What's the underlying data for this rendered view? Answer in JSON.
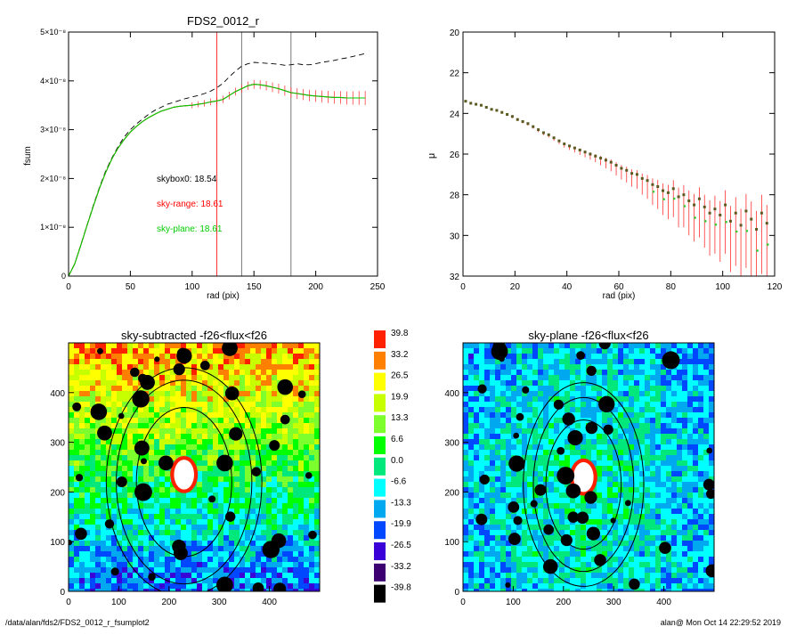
{
  "footer": {
    "left": "/data/alan/fds2/FDS2_0012_r_fsumplot2",
    "right": "alan@  Mon Oct 14 22:29:52 2019"
  },
  "chart_data": [
    {
      "type": "line",
      "title": "FDS2_0012_r",
      "xlabel": "rad (pix)",
      "ylabel": "fsum",
      "xlim": [
        0,
        250
      ],
      "ylim": [
        0,
        5e-08
      ],
      "xticks": [
        "0",
        "50",
        "100",
        "150",
        "200",
        "250"
      ],
      "yticks": [
        "0",
        "1×10⁻⁸",
        "2×10⁻⁸",
        "3×10⁻⁸",
        "4×10⁻⁸",
        "5×10⁻⁸"
      ],
      "yticks_values": [
        0,
        1e-08,
        2e-08,
        3e-08,
        4e-08,
        5e-08
      ],
      "vlines": [
        120,
        140,
        180
      ],
      "annotations": [
        "skybox0: 18.54",
        "sky-range: 18.61",
        "sky-plane: 18.61"
      ],
      "annotation_colors": [
        "#000000",
        "#ff0000",
        "#00cc00"
      ],
      "x": [
        0,
        5,
        10,
        15,
        20,
        25,
        30,
        35,
        40,
        45,
        50,
        55,
        60,
        65,
        70,
        75,
        80,
        85,
        90,
        95,
        100,
        105,
        110,
        115,
        120,
        125,
        130,
        135,
        140,
        145,
        150,
        155,
        160,
        165,
        170,
        175,
        180,
        185,
        190,
        195,
        200,
        205,
        210,
        215,
        220,
        225,
        230,
        235,
        240
      ],
      "series": [
        {
          "color": "#000000",
          "style": "dashed",
          "values": [
            0,
            2.5e-09,
            6.5e-09,
            1.05e-08,
            1.45e-08,
            1.82e-08,
            2.15e-08,
            2.42e-08,
            2.65e-08,
            2.85e-08,
            3e-08,
            3.12e-08,
            3.22e-08,
            3.32e-08,
            3.4e-08,
            3.46e-08,
            3.52e-08,
            3.56e-08,
            3.6e-08,
            3.64e-08,
            3.67e-08,
            3.7e-08,
            3.74e-08,
            3.79e-08,
            3.86e-08,
            3.95e-08,
            4.08e-08,
            4.2e-08,
            4.3e-08,
            4.35e-08,
            4.38e-08,
            4.37e-08,
            4.36e-08,
            4.35e-08,
            4.34e-08,
            4.32e-08,
            4.33e-08,
            4.35e-08,
            4.33e-08,
            4.33e-08,
            4.35e-08,
            4.38e-08,
            4.4e-08,
            4.42e-08,
            4.45e-08,
            4.47e-08,
            4.5e-08,
            4.53e-08,
            4.56e-08
          ]
        },
        {
          "color": "#ff0000",
          "style": "solid",
          "values": [
            0,
            2.5e-09,
            6.4e-09,
            1.04e-08,
            1.43e-08,
            1.8e-08,
            2.12e-08,
            2.4e-08,
            2.62e-08,
            2.8e-08,
            2.95e-08,
            3.07e-08,
            3.17e-08,
            3.25e-08,
            3.32e-08,
            3.38e-08,
            3.42e-08,
            3.46e-08,
            3.48e-08,
            3.49e-08,
            3.5e-08,
            3.52e-08,
            3.54e-08,
            3.57e-08,
            3.59e-08,
            3.62e-08,
            3.7e-08,
            3.78e-08,
            3.84e-08,
            3.9e-08,
            3.93e-08,
            3.92e-08,
            3.9e-08,
            3.87e-08,
            3.84e-08,
            3.8e-08,
            3.76e-08,
            3.74e-08,
            3.72e-08,
            3.7e-08,
            3.69e-08,
            3.68e-08,
            3.67e-08,
            3.66e-08,
            3.66e-08,
            3.65e-08,
            3.65e-08,
            3.65e-08,
            3.65e-08
          ]
        },
        {
          "color": "#00cc00",
          "style": "solid",
          "values": [
            0,
            2.5e-09,
            6.4e-09,
            1.04e-08,
            1.43e-08,
            1.8e-08,
            2.12e-08,
            2.4e-08,
            2.62e-08,
            2.8e-08,
            2.95e-08,
            3.07e-08,
            3.17e-08,
            3.25e-08,
            3.32e-08,
            3.38e-08,
            3.42e-08,
            3.46e-08,
            3.48e-08,
            3.49e-08,
            3.5e-08,
            3.52e-08,
            3.54e-08,
            3.57e-08,
            3.59e-08,
            3.62e-08,
            3.7e-08,
            3.78e-08,
            3.84e-08,
            3.9e-08,
            3.93e-08,
            3.92e-08,
            3.9e-08,
            3.87e-08,
            3.84e-08,
            3.8e-08,
            3.76e-08,
            3.74e-08,
            3.72e-08,
            3.7e-08,
            3.69e-08,
            3.68e-08,
            3.67e-08,
            3.66e-08,
            3.66e-08,
            3.65e-08,
            3.65e-08,
            3.65e-08,
            3.65e-08
          ]
        }
      ]
    },
    {
      "type": "scatter",
      "title": "",
      "xlabel": "rad (pix)",
      "ylabel": "μ",
      "xlim": [
        0,
        120
      ],
      "ylim": [
        32,
        20
      ],
      "xticks": [
        "0",
        "20",
        "40",
        "60",
        "80",
        "100",
        "120"
      ],
      "yticks": [
        "20",
        "22",
        "24",
        "26",
        "28",
        "30",
        "32"
      ],
      "x": [
        1,
        3,
        5,
        7,
        9,
        11,
        13,
        15,
        17,
        19,
        21,
        23,
        25,
        27,
        29,
        31,
        33,
        35,
        37,
        39,
        41,
        43,
        45,
        47,
        49,
        51,
        53,
        55,
        57,
        59,
        61,
        63,
        65,
        67,
        69,
        71,
        73,
        75,
        77,
        79,
        81,
        83,
        85,
        87,
        89,
        91,
        93,
        95,
        97,
        99,
        101,
        103,
        105,
        107,
        109,
        111,
        113,
        115,
        117
      ],
      "y": [
        23.4,
        23.5,
        23.55,
        23.6,
        23.7,
        23.8,
        23.85,
        23.95,
        24.05,
        24.15,
        24.3,
        24.4,
        24.5,
        24.65,
        24.8,
        24.95,
        25.05,
        25.2,
        25.35,
        25.5,
        25.6,
        25.7,
        25.8,
        25.9,
        26.0,
        26.1,
        26.2,
        26.3,
        26.4,
        26.55,
        26.7,
        26.8,
        26.95,
        27.0,
        27.2,
        27.3,
        27.5,
        27.6,
        27.8,
        27.9,
        27.7,
        28.1,
        28.0,
        28.3,
        28.5,
        28.2,
        28.6,
        28.9,
        28.7,
        29.0,
        28.5,
        29.3,
        28.9,
        29.5,
        28.8,
        29.2,
        29.7,
        28.9,
        29.4
      ],
      "errs": [
        0.05,
        0.05,
        0.05,
        0.05,
        0.05,
        0.06,
        0.06,
        0.07,
        0.07,
        0.08,
        0.08,
        0.09,
        0.1,
        0.1,
        0.12,
        0.12,
        0.14,
        0.15,
        0.16,
        0.18,
        0.2,
        0.22,
        0.24,
        0.26,
        0.28,
        0.3,
        0.35,
        0.4,
        0.45,
        0.5,
        0.55,
        0.6,
        0.65,
        0.7,
        0.8,
        0.9,
        1.0,
        1.1,
        1.2,
        1.3,
        1.4,
        1.5,
        1.6,
        1.7,
        1.8,
        1.9,
        2.0,
        2.1,
        2.2,
        2.3,
        2.4,
        2.5,
        2.6,
        2.7,
        2.8,
        2.9,
        3.0,
        3.0,
        3.0
      ]
    },
    {
      "type": "heatmap",
      "title": "sky-subtracted -f26<flux<f26",
      "xlim": [
        0,
        500
      ],
      "ylim": [
        0,
        500
      ],
      "xticks": [
        "0",
        "100",
        "200",
        "300",
        "400"
      ],
      "yticks": [
        "0",
        "100",
        "200",
        "300",
        "400"
      ],
      "ellipse_center": [
        230,
        220
      ],
      "ellipse_semi_axes": [
        [
          95,
          150
        ],
        [
          135,
          205
        ],
        [
          155,
          230
        ]
      ]
    },
    {
      "type": "heatmap",
      "title": "",
      "colorbar": [
        "39.8",
        "33.2",
        "26.5",
        "19.9",
        "13.3",
        "6.6",
        "0.0",
        "-6.6",
        "-13.3",
        "-19.9",
        "-26.5",
        "-33.2",
        "-39.8"
      ],
      "colorbar_colors": [
        "#ff2000",
        "#ff8000",
        "#ffff00",
        "#c8ff00",
        "#7cff2c",
        "#00ff00",
        "#00e87c",
        "#00ffff",
        "#00a8f0",
        "#0048ff",
        "#3a00d8",
        "#3c0070",
        "#000000"
      ]
    },
    {
      "type": "heatmap",
      "title": "sky-plane -f26<flux<f26",
      "xlim": [
        0,
        500
      ],
      "ylim": [
        0,
        500
      ],
      "xticks": [
        "0",
        "100",
        "200",
        "300",
        "400"
      ],
      "yticks": [
        "0",
        "100",
        "200",
        "300",
        "400"
      ],
      "ellipse_center": [
        240,
        215
      ],
      "ellipse_semi_axes": [
        [
          75,
          130
        ],
        [
          100,
          175
        ],
        [
          120,
          205
        ]
      ]
    }
  ]
}
